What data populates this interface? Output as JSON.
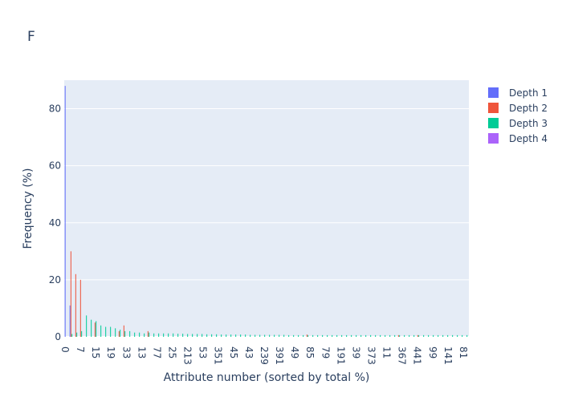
{
  "chart_data": {
    "type": "bar",
    "title": "F",
    "xlabel": "Attribute number (sorted by total %)",
    "ylabel": "Frequency (%)",
    "ylim": [
      0,
      90
    ],
    "yticks": [
      0,
      20,
      40,
      60,
      80
    ],
    "grid": true,
    "legend_position": "top-right",
    "categories": [
      "0",
      "1",
      "2",
      "3",
      "4",
      "5",
      "6",
      "7",
      "8",
      "9",
      "10",
      "11",
      "12",
      "13",
      "14",
      "15",
      "16",
      "17",
      "18",
      "19",
      "20",
      "21",
      "22",
      "23",
      "24",
      "25",
      "26",
      "27",
      "28",
      "29",
      "30",
      "31",
      "32",
      "33",
      "34",
      "35",
      "36",
      "37",
      "38",
      "39",
      "40",
      "41",
      "42",
      "43",
      "44",
      "45",
      "46",
      "47",
      "48",
      "49",
      "50",
      "51",
      "52",
      "53",
      "54",
      "55",
      "56",
      "57",
      "58",
      "59",
      "60",
      "61",
      "62",
      "63",
      "64",
      "65",
      "66",
      "67",
      "68",
      "69",
      "70",
      "71",
      "72",
      "73",
      "74",
      "75",
      "76",
      "77",
      "78",
      "79",
      "80",
      "81",
      "82",
      "83"
    ],
    "x_tick_labels": [
      "0",
      "7",
      "15",
      "19",
      "33",
      "13",
      "77",
      "25",
      "213",
      "53",
      "351",
      "45",
      "43",
      "239",
      "391",
      "49",
      "85",
      "79",
      "191",
      "39",
      "373",
      "11",
      "367",
      "441",
      "99",
      "141",
      "81"
    ],
    "series": [
      {
        "name": "Depth 1",
        "color": "#636efa",
        "values": [
          88,
          11,
          0,
          0,
          0,
          0,
          0,
          0,
          0,
          0,
          0,
          0,
          0,
          0,
          0,
          0,
          0,
          0,
          0,
          0,
          0,
          0,
          0,
          0,
          0,
          0,
          0,
          0,
          0,
          0,
          0,
          0,
          0,
          0,
          0,
          0,
          0,
          0,
          0,
          0,
          0,
          0,
          0,
          0,
          0,
          0,
          0,
          0,
          0,
          0,
          0,
          0,
          0,
          0,
          0,
          0,
          0,
          0,
          0,
          0,
          0,
          0,
          0,
          0,
          0,
          0,
          0,
          0,
          0,
          0,
          0,
          0,
          0,
          0,
          0,
          0,
          0,
          0,
          0,
          0,
          0,
          0,
          0,
          0
        ]
      },
      {
        "name": "Depth 2",
        "color": "#ef553b",
        "values": [
          0,
          30,
          22,
          20,
          0,
          0,
          5,
          0,
          0,
          0,
          0,
          2,
          4,
          0,
          0,
          0,
          0,
          2,
          0,
          0,
          0,
          0,
          0,
          0,
          0,
          0,
          0,
          0,
          0,
          0,
          0,
          0,
          0,
          0,
          0,
          0,
          0,
          0,
          0,
          0,
          0,
          0,
          0,
          0,
          0,
          0,
          0,
          0,
          0,
          0,
          0.8,
          0,
          0,
          0,
          0,
          0,
          0,
          0,
          0,
          0,
          0,
          0,
          0,
          0,
          0,
          0,
          0,
          0,
          0,
          0.6,
          0,
          0,
          0,
          0.6,
          0,
          0,
          0,
          0,
          0,
          0,
          0,
          0,
          0,
          0
        ]
      },
      {
        "name": "Depth 3",
        "color": "#00cc96",
        "values": [
          0,
          1,
          1.5,
          2,
          7.5,
          6,
          5.5,
          4,
          3.5,
          3.5,
          3,
          2.5,
          2,
          2,
          1.5,
          1.5,
          1.2,
          1.5,
          1.2,
          1.2,
          1.2,
          1.2,
          1.2,
          1.1,
          1.1,
          1,
          1,
          1,
          1,
          0.9,
          0.9,
          0.9,
          0.8,
          0.8,
          0.8,
          0.8,
          0.8,
          0.8,
          0.7,
          0.7,
          0.7,
          0.7,
          0.7,
          0.7,
          0.7,
          0.7,
          0.6,
          0.6,
          0.6,
          0.6,
          0.6,
          0.6,
          0.6,
          0.6,
          0.6,
          0.6,
          0.6,
          0.6,
          0.6,
          0.6,
          0.6,
          0.6,
          0.6,
          0.6,
          0.6,
          0.6,
          0.6,
          0.6,
          0.6,
          0.6,
          0.6,
          0.6,
          0.6,
          0.6,
          0.6,
          0.6,
          0.6,
          0.6,
          0.6,
          0.6,
          0.6,
          0.6,
          0.6,
          0.6
        ]
      },
      {
        "name": "Depth 4",
        "color": "#ab63fa",
        "values": [
          0,
          0,
          0,
          0,
          0,
          0,
          0,
          0,
          0,
          0,
          0,
          0,
          0,
          0,
          0,
          0,
          0,
          0,
          0,
          0,
          0,
          0,
          0,
          0,
          0,
          0,
          0,
          0,
          0,
          0,
          0,
          0,
          0,
          0,
          0,
          0,
          0,
          0,
          0,
          0,
          0,
          0,
          0,
          0,
          0,
          0,
          0,
          0,
          0,
          0,
          0,
          0,
          0,
          0,
          0,
          0,
          0,
          0,
          0,
          0,
          0,
          0,
          0,
          0,
          0,
          0,
          0,
          0,
          0,
          0,
          0,
          0,
          0,
          0,
          0,
          0,
          0,
          0,
          0,
          0,
          0,
          0,
          0,
          0
        ]
      }
    ]
  }
}
